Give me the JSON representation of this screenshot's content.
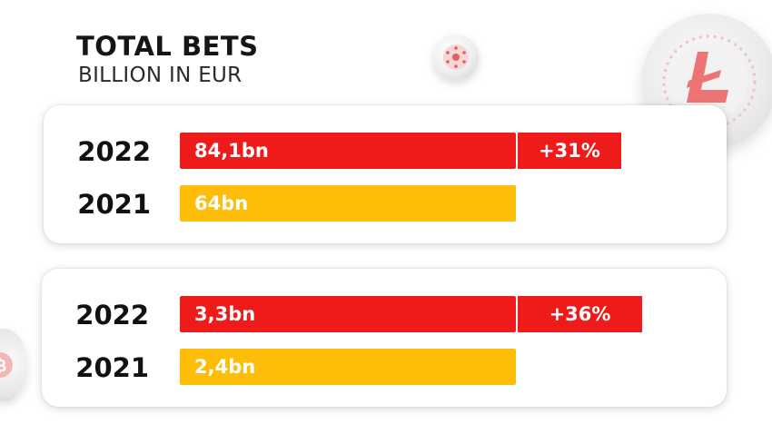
{
  "chart_data": [
    {
      "type": "bar",
      "orientation": "horizontal",
      "title": "TOTAL BETS",
      "subtitle": "BILLION IN EUR",
      "categories": [
        "2022",
        "2021"
      ],
      "values": [
        84.1,
        64
      ],
      "value_labels": [
        "84,1bn",
        "64bn"
      ],
      "growth_label": "+31%",
      "colors": [
        "#ef1b1b",
        "#fdbd08"
      ]
    },
    {
      "type": "bar",
      "orientation": "horizontal",
      "categories": [
        "2022",
        "2021"
      ],
      "values": [
        3.3,
        2.4
      ],
      "value_labels": [
        "3,3bn",
        "2,4bn"
      ],
      "growth_label": "+36%",
      "colors": [
        "#ef1b1b",
        "#fdbd08"
      ]
    }
  ],
  "decor": {
    "coin_icons": [
      "cardano-coin-icon",
      "litecoin-coin-icon",
      "bitcoin-coin-icon"
    ]
  }
}
